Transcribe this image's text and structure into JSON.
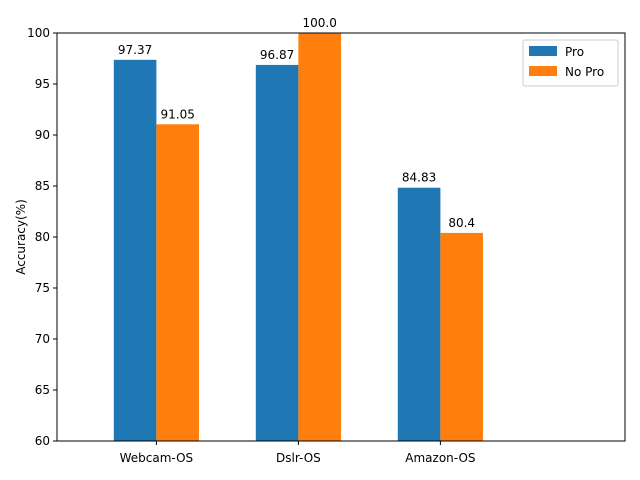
{
  "chart_data": {
    "type": "bar",
    "categories": [
      "Webcam-OS",
      "Dslr-OS",
      "Amazon-OS"
    ],
    "series": [
      {
        "name": "Pro",
        "values": [
          97.37,
          96.87,
          84.83
        ],
        "labels": [
          "97.37",
          "96.87",
          "84.83"
        ],
        "color": "#1f77b4"
      },
      {
        "name": "No Pro",
        "values": [
          91.05,
          100.0,
          80.4
        ],
        "labels": [
          "91.05",
          "100.0",
          "80.4"
        ],
        "color": "#ff7f0e"
      }
    ],
    "title": "",
    "xlabel": "",
    "ylabel": "Accuracy(%)",
    "ylim": [
      60,
      100
    ],
    "yticks": [
      60,
      65,
      70,
      75,
      80,
      85,
      90,
      95,
      100
    ],
    "grid": false,
    "legend_position": "top-right"
  }
}
